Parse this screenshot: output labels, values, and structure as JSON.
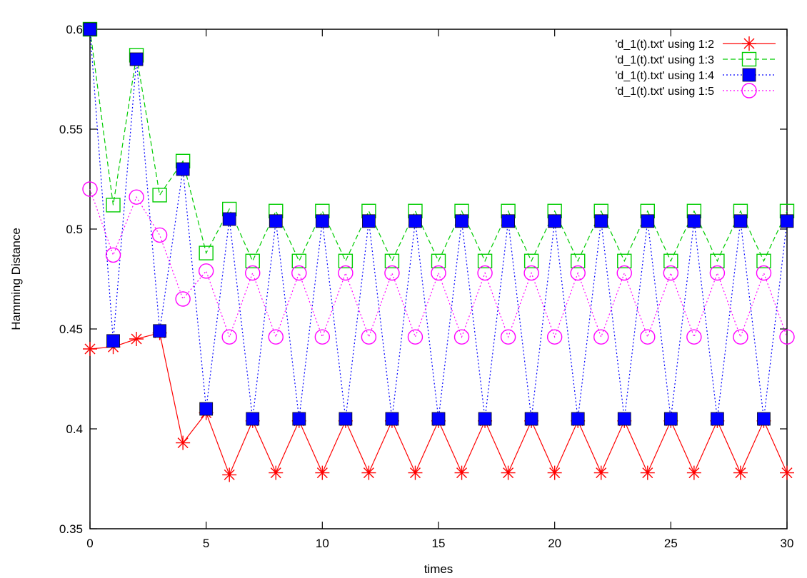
{
  "chart_data": {
    "type": "line",
    "xlabel": "times",
    "ylabel": "Hamming Distance",
    "xlim": [
      0,
      30
    ],
    "ylim": [
      0.35,
      0.6
    ],
    "xticks": [
      0,
      5,
      10,
      15,
      20,
      25,
      30
    ],
    "yticks": [
      0.35,
      0.4,
      0.45,
      0.5,
      0.55,
      0.6
    ],
    "ytick_labels": [
      "0.35",
      "0.4",
      "0.45",
      "0.5",
      "0.55",
      "0.6"
    ],
    "grid": false,
    "legend_position": "top-right",
    "x": [
      0,
      1,
      2,
      3,
      4,
      5,
      6,
      7,
      8,
      9,
      10,
      11,
      12,
      13,
      14,
      15,
      16,
      17,
      18,
      19,
      20,
      21,
      22,
      23,
      24,
      25,
      26,
      27,
      28,
      29,
      30
    ],
    "series": [
      {
        "name": "'d_1(t).txt' using 1:2",
        "color": "#ff0000",
        "dash": "solid",
        "marker": "asterisk",
        "values": [
          0.44,
          0.441,
          0.445,
          0.448,
          0.393,
          0.408,
          0.377,
          0.404,
          0.378,
          0.404,
          0.378,
          0.404,
          0.378,
          0.404,
          0.378,
          0.404,
          0.378,
          0.404,
          0.378,
          0.404,
          0.378,
          0.404,
          0.378,
          0.404,
          0.378,
          0.404,
          0.378,
          0.404,
          0.378,
          0.404,
          0.378
        ]
      },
      {
        "name": "'d_1(t).txt' using 1:3",
        "color": "#00cc00",
        "dash": "dashed",
        "marker": "open-square",
        "values": [
          0.6,
          0.512,
          0.587,
          0.517,
          0.534,
          0.488,
          0.51,
          0.484,
          0.509,
          0.484,
          0.509,
          0.484,
          0.509,
          0.484,
          0.509,
          0.484,
          0.509,
          0.484,
          0.509,
          0.484,
          0.509,
          0.484,
          0.509,
          0.484,
          0.509,
          0.484,
          0.509,
          0.484,
          0.509,
          0.484,
          0.509
        ]
      },
      {
        "name": "'d_1(t).txt' using 1:4",
        "color": "#0000ff",
        "dash": "dotted",
        "marker": "filled-square",
        "values": [
          0.6,
          0.444,
          0.585,
          0.449,
          0.53,
          0.41,
          0.505,
          0.405,
          0.504,
          0.405,
          0.504,
          0.405,
          0.504,
          0.405,
          0.504,
          0.405,
          0.504,
          0.405,
          0.504,
          0.405,
          0.504,
          0.405,
          0.504,
          0.405,
          0.504,
          0.405,
          0.504,
          0.405,
          0.504,
          0.405,
          0.504
        ]
      },
      {
        "name": "'d_1(t).txt' using 1:5",
        "color": "#ff00ff",
        "dash": "dotted",
        "marker": "open-circle",
        "values": [
          0.52,
          0.487,
          0.516,
          0.497,
          0.465,
          0.479,
          0.446,
          0.478,
          0.446,
          0.478,
          0.446,
          0.478,
          0.446,
          0.478,
          0.446,
          0.478,
          0.446,
          0.478,
          0.446,
          0.478,
          0.446,
          0.478,
          0.446,
          0.478,
          0.446,
          0.478,
          0.446,
          0.478,
          0.446,
          0.478,
          0.446
        ]
      }
    ]
  }
}
